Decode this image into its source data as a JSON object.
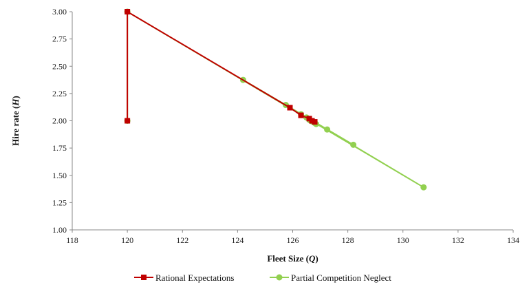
{
  "chart_data": {
    "type": "line",
    "title": "",
    "xlabel": {
      "main": "Fleet Size (",
      "var": "Q",
      "close": ")"
    },
    "ylabel": {
      "main": "Hire rate (",
      "var": "H",
      "close": ")"
    },
    "xlim": [
      118,
      134
    ],
    "ylim": [
      1.0,
      3.0
    ],
    "x_ticks": [
      "118",
      "120",
      "122",
      "124",
      "126",
      "128",
      "130",
      "132",
      "134"
    ],
    "y_ticks": [
      "1.00",
      "1.25",
      "1.50",
      "1.75",
      "2.00",
      "2.25",
      "2.50",
      "2.75",
      "3.00"
    ],
    "grid": false,
    "legend_position": "bottom",
    "series": [
      {
        "name": "Rational Expectations",
        "color": "#c00000",
        "marker": "square",
        "x": [
          120,
          120,
          125.9,
          126.3,
          126.6,
          126.7,
          126.8
        ],
        "y": [
          2.0,
          3.0,
          2.12,
          2.05,
          2.02,
          2.0,
          1.99
        ]
      },
      {
        "name": "Partial Competition Neglect",
        "color": "#92d050",
        "marker": "circle",
        "x": [
          120,
          120,
          130.75,
          124.2,
          128.2,
          125.75,
          127.25,
          126.3,
          126.85,
          126.5,
          126.8,
          126.6,
          126.75,
          126.65,
          126.7
        ],
        "y": [
          2.0,
          3.0,
          1.39,
          2.375,
          1.78,
          2.145,
          1.92,
          2.06,
          1.97,
          2.03,
          1.98,
          2.01,
          1.99,
          2.0,
          1.995
        ]
      }
    ]
  }
}
